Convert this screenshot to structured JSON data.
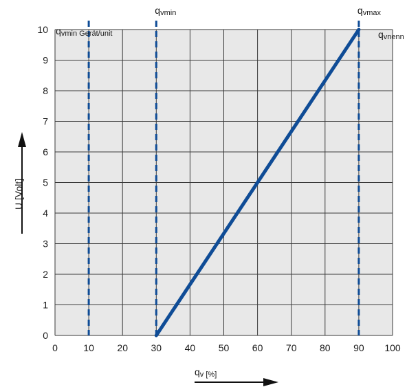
{
  "chart_data": {
    "type": "line",
    "x": [
      30,
      90
    ],
    "y": [
      0,
      10
    ],
    "xlim": [
      0,
      100
    ],
    "ylim": [
      0,
      10
    ],
    "x_ticks": [
      "0",
      "10",
      "20",
      "30",
      "40",
      "50",
      "60",
      "70",
      "80",
      "90",
      "100"
    ],
    "y_ticks": [
      "0",
      "1",
      "2",
      "3",
      "4",
      "5",
      "6",
      "7",
      "8",
      "9",
      "10"
    ],
    "xlabel": {
      "main": "q",
      "sub": "v [%]"
    },
    "ylabel": "U [Volt]",
    "grid": true,
    "reference_lines": [
      {
        "x": 10,
        "main": "q",
        "sub": "vmin Gerät/unit",
        "style": "dashed"
      },
      {
        "x": 30,
        "main": "q",
        "sub": "vmin",
        "style": "dashed"
      },
      {
        "x": 90,
        "main": "q",
        "sub": "vmax",
        "style": "dashed"
      }
    ],
    "corner_label": {
      "main": "q",
      "sub": "vnenn"
    },
    "colors": {
      "line": "#0f4c96",
      "grid": "#3a3a3a",
      "plot_bg": "#e8e8e8"
    }
  }
}
